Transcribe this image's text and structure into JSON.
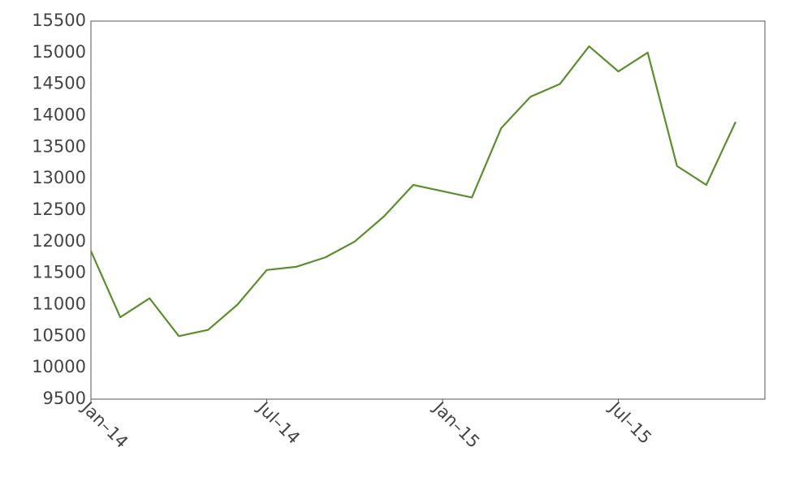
{
  "chart_data": {
    "type": "line",
    "x": [
      "2014-01",
      "2014-02",
      "2014-03",
      "2014-04",
      "2014-05",
      "2014-06",
      "2014-07",
      "2014-08",
      "2014-09",
      "2014-10",
      "2014-11",
      "2014-12",
      "2015-01",
      "2015-02",
      "2015-03",
      "2015-04",
      "2015-05",
      "2015-06",
      "2015-07",
      "2015-08",
      "2015-09",
      "2015-10",
      "2015-11"
    ],
    "series": [
      {
        "color": "#5a8f29",
        "values": [
          11850,
          10800,
          11100,
          10500,
          10600,
          11000,
          11550,
          11600,
          11750,
          12000,
          12400,
          12900,
          12800,
          12700,
          13800,
          14300,
          14500,
          15100,
          14700,
          15000,
          13200,
          12900,
          13900
        ]
      }
    ],
    "xlim": [
      "2014-01",
      "2015-12"
    ],
    "xticks": [
      {
        "value": "2014-01",
        "label": "Jan–14"
      },
      {
        "value": "2014-07",
        "label": "Jul–14"
      },
      {
        "value": "2015-01",
        "label": "Jan–15"
      },
      {
        "value": "2015-07",
        "label": "Jul–15"
      }
    ],
    "ylim": [
      9500,
      15500
    ],
    "yticks": [
      9500,
      10000,
      10500,
      11000,
      11500,
      12000,
      12500,
      13000,
      13500,
      14000,
      14500,
      15000,
      15500
    ],
    "grid": false
  }
}
